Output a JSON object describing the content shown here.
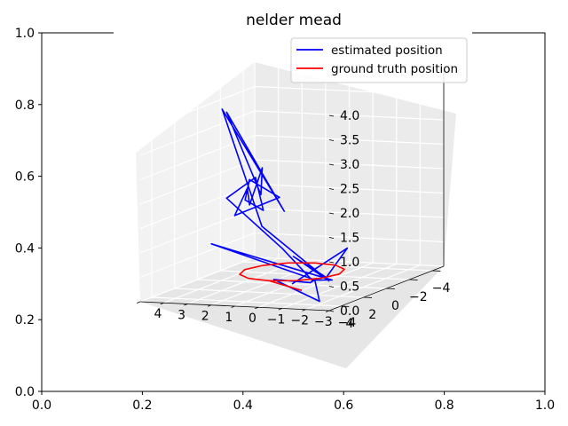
{
  "chart_data": {
    "type": "line",
    "title": "nelder mead",
    "outer_axes": {
      "xlim": [
        0.0,
        1.0
      ],
      "ylim": [
        0.0,
        1.0
      ],
      "x_ticks": [
        "0.0",
        "0.2",
        "0.4",
        "0.6",
        "0.8",
        "1.0"
      ],
      "y_ticks": [
        "0.0",
        "0.2",
        "0.4",
        "0.6",
        "0.8",
        "1.0"
      ]
    },
    "axes3d": {
      "xlim": [
        -5,
        5
      ],
      "ylim": [
        -4,
        4
      ],
      "zlim": [
        0.0,
        4.0
      ],
      "x_ticks": [
        "−4",
        "−2",
        "0",
        "2",
        "4"
      ],
      "y_ticks": [
        "−4",
        "−3",
        "−2",
        "−1",
        "0",
        "1",
        "2",
        "3",
        "4"
      ],
      "z_ticks": [
        "0.0",
        "0.5",
        "1.0",
        "1.5",
        "2.0",
        "2.5",
        "3.0",
        "3.5",
        "4.0"
      ],
      "grid": true
    },
    "legend": {
      "placement": "top-right",
      "entries": [
        {
          "label": "estimated position",
          "color": "#0000ff"
        },
        {
          "label": "ground truth position",
          "color": "#ff0000"
        }
      ]
    },
    "series": [
      {
        "name": "estimated position",
        "color": "#0000ff",
        "points": [
          [
            0.0,
            0.0,
            0.0
          ],
          [
            -3.8,
            -0.5,
            0.4
          ],
          [
            0.3,
            -1.6,
            0.2
          ],
          [
            -2.6,
            1.2,
            0.3
          ],
          [
            0.5,
            -1.8,
            0.15
          ],
          [
            -1.5,
            2.0,
            1.0
          ],
          [
            2.8,
            1.6,
            3.8
          ],
          [
            -1.8,
            1.2,
            1.3
          ],
          [
            2.4,
            1.6,
            3.7
          ],
          [
            -1.0,
            1.8,
            1.7
          ],
          [
            -0.5,
            1.5,
            2.3
          ],
          [
            0.2,
            1.7,
            1.6
          ],
          [
            0.8,
            1.5,
            2.0
          ],
          [
            1.5,
            1.7,
            1.5
          ],
          [
            -1.6,
            1.3,
            1.6
          ],
          [
            0.0,
            1.8,
            2.1
          ],
          [
            1.2,
            1.4,
            1.8
          ],
          [
            -0.8,
            1.6,
            1.4
          ],
          [
            0.5,
            1.3,
            2.2
          ],
          [
            2.0,
            1.8,
            1.9
          ],
          [
            -1.2,
            1.0,
            0.6
          ],
          [
            0.8,
            -1.2,
            0.2
          ],
          [
            -0.3,
            -0.9,
            0.1
          ],
          [
            1.5,
            -1.5,
            0.2
          ],
          [
            2.2,
            -0.3,
            0.3
          ],
          [
            4.2,
            -3.2,
            0.1
          ],
          [
            0.9,
            -1.4,
            0.2
          ],
          [
            2.5,
            2.2,
            1.0
          ],
          [
            0.6,
            -1.0,
            0.3
          ],
          [
            -0.2,
            -1.6,
            0.1
          ],
          [
            1.0,
            -1.3,
            0.2
          ]
        ]
      },
      {
        "name": "ground truth position",
        "color": "#ff0000",
        "points": [
          [
            2.0,
            0.0,
            0.25
          ],
          [
            1.732,
            1.0,
            0.25
          ],
          [
            1.0,
            1.732,
            0.25
          ],
          [
            0.0,
            2.0,
            0.25
          ],
          [
            -1.0,
            1.732,
            0.25
          ],
          [
            -1.732,
            1.0,
            0.25
          ],
          [
            -2.0,
            0.0,
            0.25
          ],
          [
            -1.732,
            -1.0,
            0.25
          ],
          [
            -1.0,
            -1.732,
            0.25
          ],
          [
            0.0,
            -2.0,
            0.25
          ],
          [
            1.0,
            -1.732,
            0.25
          ],
          [
            1.732,
            -1.0,
            0.25
          ],
          [
            2.0,
            0.0,
            0.25
          ],
          [
            1.2,
            -1.0,
            0.0
          ]
        ]
      }
    ]
  }
}
